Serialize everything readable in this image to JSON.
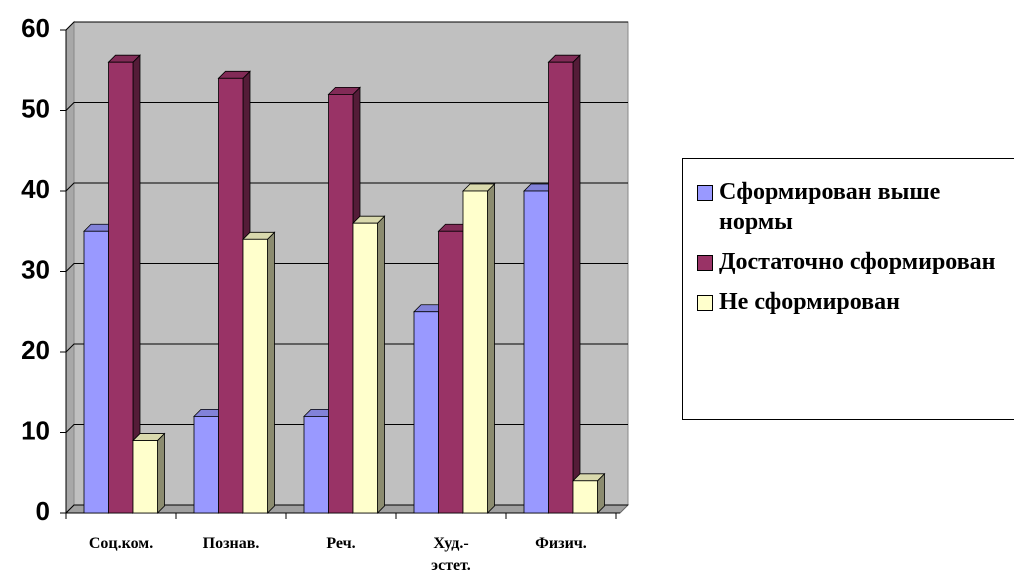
{
  "chart_data": {
    "type": "bar3d",
    "categories": [
      "Соц.ком.",
      "Познав.",
      "Реч.",
      "Худ.-эстет.",
      "Физич."
    ],
    "series": [
      {
        "name": "Сформирован выше нормы",
        "color": "#9999ff",
        "values": [
          35,
          12,
          12,
          25,
          40
        ]
      },
      {
        "name": "Достаточно сформирован",
        "color": "#993366",
        "values": [
          56,
          54,
          52,
          35,
          56
        ]
      },
      {
        "name": "Не сформирован",
        "color": "#ffffcc",
        "values": [
          9,
          34,
          36,
          40,
          4
        ]
      }
    ],
    "ylim": [
      0,
      60
    ],
    "yticks": [
      0,
      10,
      20,
      30,
      40,
      50,
      60
    ],
    "grid": true,
    "legend": "right"
  }
}
